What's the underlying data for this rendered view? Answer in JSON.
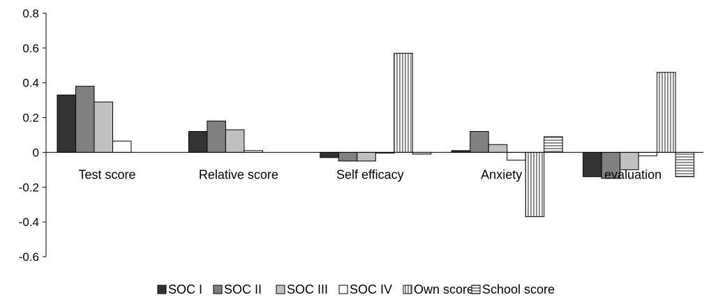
{
  "chart_data": {
    "type": "bar",
    "title": "",
    "xlabel": "",
    "ylabel": "",
    "ylim": [
      -0.6,
      0.8
    ],
    "yticks": [
      "0.8",
      "0.6",
      "0.4",
      "0.2",
      "0",
      "-0.2",
      "-0.4",
      "-0.6"
    ],
    "ytick_values": [
      0.8,
      0.6,
      0.4,
      0.2,
      0,
      -0.2,
      -0.4,
      -0.6
    ],
    "grid": false,
    "legend_position": "bottom",
    "categories": [
      "Test score",
      "Relative score",
      "Self efficacy",
      "Anxiety",
      "evaluation"
    ],
    "series": [
      {
        "name": "SOC I",
        "values": [
          0.33,
          0.12,
          -0.03,
          0.01,
          -0.14
        ],
        "color": "#333333",
        "pattern": "solid"
      },
      {
        "name": "SOC II",
        "values": [
          0.38,
          0.18,
          -0.05,
          0.12,
          -0.15
        ],
        "color": "#808080",
        "pattern": "solid"
      },
      {
        "name": "SOC III",
        "values": [
          0.29,
          0.13,
          -0.05,
          0.045,
          -0.1
        ],
        "color": "#c0c0c0",
        "pattern": "solid"
      },
      {
        "name": "SOC IV",
        "values": [
          0.065,
          0.01,
          -0.005,
          -0.045,
          -0.02
        ],
        "color": "#ffffff",
        "pattern": "solid"
      },
      {
        "name": "Own score",
        "values": [
          0.0,
          0.0,
          0.57,
          -0.37,
          0.46
        ],
        "color": "#999999",
        "pattern": "vertical-stripes"
      },
      {
        "name": "School score",
        "values": [
          0.0,
          0.0,
          -0.01,
          0.09,
          -0.14
        ],
        "color": "#999999",
        "pattern": "horizontal-stripes"
      }
    ]
  }
}
